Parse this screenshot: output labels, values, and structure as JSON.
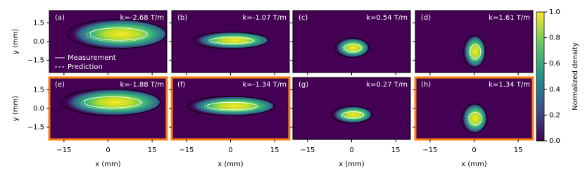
{
  "chart_data": [
    {
      "type": "heatmap",
      "label": "(a)",
      "annotation": "k=-2.68 T/m",
      "ylabel": "y (mm)",
      "xlim": [
        -20,
        20
      ],
      "ylim": [
        -2.5,
        2.5
      ],
      "xticks": [
        -15,
        0,
        15
      ],
      "yticks": [
        1.5,
        {
          "value": 0,
          "label": "0.0"
        },
        {
          "value": -1.5,
          "label": "−1.5"
        }
      ],
      "background": "#440154",
      "series": [
        {
          "name": "Measurement",
          "color": "#ffffff",
          "dash": "solid"
        },
        {
          "name": "Prediction",
          "color": "#ffffff",
          "dash": "dashed"
        }
      ]
    },
    {
      "type": "heatmap",
      "label": "(b)",
      "annotation": "k=-1.07 T/m",
      "xlim": [
        -20,
        20
      ],
      "ylim": [
        -2.5,
        2.5
      ],
      "xticks": [
        -15,
        0,
        15
      ],
      "yticks": [
        1.5,
        0,
        -1.5
      ],
      "background": "#440154"
    },
    {
      "type": "heatmap",
      "label": "(c)",
      "annotation": "k=0.54 T/m",
      "xlim": [
        -20,
        20
      ],
      "ylim": [
        -2.5,
        2.5
      ],
      "xticks": [
        -15,
        0,
        15
      ],
      "yticks": [
        1.5,
        0,
        -1.5
      ],
      "background": "#440154"
    },
    {
      "type": "heatmap",
      "label": "(d)",
      "annotation": "k=1.61 T/m",
      "xlim": [
        -20,
        20
      ],
      "ylim": [
        -2.5,
        2.5
      ],
      "xticks": [
        -15,
        0,
        15
      ],
      "yticks": [
        1.5,
        0,
        -1.5
      ],
      "background": "#440154"
    },
    {
      "type": "heatmap",
      "label": "(e)",
      "annotation": "k=-1.88 T/m",
      "xlabel": "x (mm)",
      "ylabel": "y (mm)",
      "xlim": [
        -20,
        20
      ],
      "ylim": [
        -2.5,
        2.5
      ],
      "xticks": [
        {
          "value": -15,
          "label": "−15"
        },
        0,
        15
      ],
      "yticks": [
        1.5,
        {
          "value": 0,
          "label": "0.0"
        },
        {
          "value": -1.5,
          "label": "−1.5"
        }
      ],
      "background": "#440154",
      "frame_color": "#ff7f0e"
    },
    {
      "type": "heatmap",
      "label": "(f)",
      "annotation": "k=-1.34 T/m",
      "xlabel": "x (mm)",
      "xlim": [
        -20,
        20
      ],
      "ylim": [
        -2.5,
        2.5
      ],
      "xticks": [
        {
          "value": -15,
          "label": "−15"
        },
        0,
        15
      ],
      "yticks": [
        1.5,
        0,
        -1.5
      ],
      "background": "#440154",
      "frame_color": "#ff7f0e"
    },
    {
      "type": "heatmap",
      "label": "(g)",
      "annotation": "k=0.27 T/m",
      "xlabel": "x (mm)",
      "xlim": [
        -20,
        20
      ],
      "ylim": [
        -2.5,
        2.5
      ],
      "xticks": [
        {
          "value": -15,
          "label": "−15"
        },
        0,
        15
      ],
      "yticks": [
        1.5,
        0,
        -1.5
      ],
      "background": "#440154"
    },
    {
      "type": "heatmap",
      "label": "(h)",
      "annotation": "k=1.34 T/m",
      "xlabel": "x (mm)",
      "xlim": [
        -20,
        20
      ],
      "ylim": [
        -2.5,
        2.5
      ],
      "xticks": [
        {
          "value": -15,
          "label": "−15"
        },
        0,
        15
      ],
      "yticks": [
        1.5,
        0,
        -1.5
      ],
      "background": "#440154",
      "frame_color": "#ff7f0e"
    },
    {
      "type": "colorbar",
      "label": "Normalized density",
      "lim": [
        0,
        1
      ],
      "colors": [
        "#440154",
        "#3b528b",
        "#21918c",
        "#5ec962",
        "#fde725"
      ],
      "ticks": [
        {
          "value": 0,
          "label": "0.0"
        },
        0.2,
        0.4,
        0.6,
        0.8,
        {
          "value": 1,
          "label": "1.0"
        }
      ]
    }
  ]
}
